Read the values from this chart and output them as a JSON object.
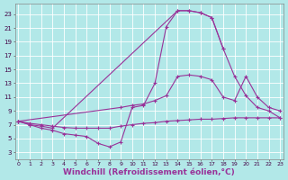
{
  "bg_color": "#b2e8e8",
  "line_color": "#993399",
  "grid_color": "#ffffff",
  "xlabel": "Windchill (Refroidissement éolien,°C)",
  "xlabel_fontsize": 6.5,
  "ylabel_ticks": [
    3,
    5,
    7,
    9,
    11,
    13,
    15,
    17,
    19,
    21,
    23
  ],
  "xlabel_ticks": [
    0,
    1,
    2,
    3,
    4,
    5,
    6,
    7,
    8,
    9,
    10,
    11,
    12,
    13,
    14,
    15,
    16,
    17,
    18,
    19,
    20,
    21,
    22,
    23
  ],
  "xlim": [
    -0.3,
    23.3
  ],
  "ylim": [
    2.0,
    24.5
  ],
  "line1_x": [
    0,
    1,
    2,
    3,
    4,
    5,
    6,
    7,
    8,
    9,
    10,
    11,
    12,
    13,
    14,
    15,
    16,
    17,
    18
  ],
  "line1_y": [
    7.5,
    7.0,
    6.5,
    6.2,
    5.7,
    5.5,
    5.3,
    4.3,
    3.8,
    4.5,
    9.5,
    9.8,
    13.0,
    21.2,
    23.5,
    23.5,
    23.2,
    22.5,
    18.0
  ],
  "line2_x": [
    0,
    1,
    2,
    3,
    14,
    15,
    16,
    17,
    18,
    19,
    20,
    21,
    22,
    23
  ],
  "line2_y": [
    7.5,
    7.0,
    6.8,
    6.5,
    23.5,
    23.5,
    23.2,
    22.5,
    18.0,
    14.0,
    11.2,
    9.5,
    9.0,
    8.0
  ],
  "line3_x": [
    0,
    9,
    10,
    11,
    12,
    13,
    14,
    15,
    16,
    17,
    18,
    19,
    20,
    21,
    22,
    23
  ],
  "line3_y": [
    7.5,
    9.5,
    9.8,
    10.0,
    10.5,
    11.2,
    14.0,
    14.2,
    14.0,
    13.5,
    11.0,
    10.5,
    14.0,
    11.0,
    9.5,
    9.0
  ],
  "line4_x": [
    0,
    1,
    2,
    3,
    4,
    5,
    6,
    7,
    8,
    9,
    10,
    11,
    12,
    13,
    14,
    15,
    16,
    17,
    18,
    19,
    20,
    21,
    22,
    23
  ],
  "line4_y": [
    7.5,
    7.2,
    7.0,
    6.8,
    6.6,
    6.5,
    6.5,
    6.5,
    6.5,
    6.8,
    7.0,
    7.2,
    7.3,
    7.5,
    7.6,
    7.7,
    7.8,
    7.8,
    7.9,
    8.0,
    8.0,
    8.0,
    8.0,
    8.0
  ]
}
